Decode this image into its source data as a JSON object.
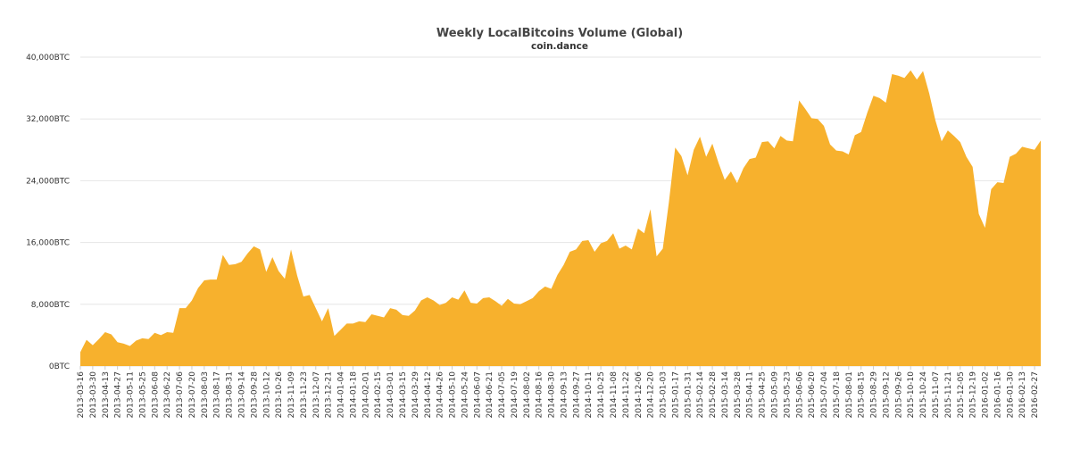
{
  "chart_data": {
    "type": "area",
    "title": "Weekly LocalBitcoins Volume (Global)",
    "subtitle": "coin.dance",
    "xlabel": "",
    "ylabel": "",
    "y_unit": "BTC",
    "ylim": [
      0,
      40000
    ],
    "y_ticks": [
      "0BTC",
      "8,000BTC",
      "16,000BTC",
      "24,000BTC",
      "32,000BTC",
      "40,000BTC"
    ],
    "y_tick_values": [
      0,
      8000,
      16000,
      24000,
      32000,
      40000
    ],
    "grid": true,
    "legend": "none",
    "color": "#F7B12D",
    "x_tick_labels": [
      "2013-03-16",
      "2013-03-30",
      "2013-04-13",
      "2013-04-27",
      "2013-05-11",
      "2013-05-25",
      "2013-06-08",
      "2013-06-22",
      "2013-07-06",
      "2013-07-20",
      "2013-08-03",
      "2013-08-17",
      "2013-08-31",
      "2013-09-14",
      "2013-09-28",
      "2013-10-12",
      "2013-10-26",
      "2013-11-09",
      "2013-11-23",
      "2013-12-07",
      "2013-12-21",
      "2014-01-04",
      "2014-01-18",
      "2014-02-01",
      "2014-02-15",
      "2014-03-01",
      "2014-03-15",
      "2014-03-29",
      "2014-04-12",
      "2014-04-26",
      "2014-05-10",
      "2014-05-24",
      "2014-06-07",
      "2014-06-21",
      "2014-07-05",
      "2014-07-19",
      "2014-08-02",
      "2014-08-16",
      "2014-08-30",
      "2014-09-13",
      "2014-09-27",
      "2014-10-11",
      "2014-10-25",
      "2014-11-08",
      "2014-11-22",
      "2014-12-06",
      "2014-12-20",
      "2015-01-03",
      "2015-01-17",
      "2015-01-31",
      "2015-02-14",
      "2015-02-28",
      "2015-03-14",
      "2015-03-28",
      "2015-04-11",
      "2015-04-25",
      "2015-05-09",
      "2015-05-23",
      "2015-06-06",
      "2015-06-20",
      "2015-07-04",
      "2015-07-18",
      "2015-08-01",
      "2015-08-15",
      "2015-08-29",
      "2015-09-12",
      "2015-09-26",
      "2015-10-10",
      "2015-10-24",
      "2015-11-07",
      "2015-11-21",
      "2015-12-05",
      "2015-12-19",
      "2016-01-02",
      "2016-01-16",
      "2016-01-30",
      "2016-02-13",
      "2016-02-27"
    ],
    "values": [
      1800,
      3400,
      2700,
      3500,
      4400,
      4100,
      3100,
      2900,
      2600,
      3300,
      3600,
      3500,
      4300,
      4000,
      4400,
      4300,
      7500,
      7500,
      8500,
      10100,
      11100,
      11200,
      11200,
      14400,
      13100,
      13200,
      13500,
      14600,
      15500,
      15100,
      12200,
      14100,
      12300,
      11300,
      15100,
      11700,
      9000,
      9200,
      7500,
      5800,
      7500,
      3900,
      4700,
      5500,
      5500,
      5800,
      5700,
      6700,
      6500,
      6300,
      7500,
      7300,
      6600,
      6500,
      7200,
      8500,
      8900,
      8500,
      7900,
      8200,
      8900,
      8600,
      9800,
      8200,
      8100,
      8800,
      8900,
      8400,
      7800,
      8700,
      8100,
      8000,
      8400,
      8800,
      9700,
      10300,
      10000,
      11800,
      13100,
      14800,
      15100,
      16200,
      16300,
      14800,
      15900,
      16200,
      17200,
      15200,
      15600,
      15100,
      17800,
      17200,
      20300,
      14200,
      15200,
      21300,
      28300,
      27200,
      24700,
      28000,
      29700,
      27100,
      28800,
      26300,
      24100,
      25200,
      23700,
      25600,
      26800,
      27000,
      29000,
      29100,
      28200,
      29800,
      29200,
      29100,
      34400,
      33300,
      32100,
      32000,
      31100,
      28700,
      27900,
      27800,
      27400,
      29900,
      30300,
      32800,
      35000,
      34700,
      34100,
      37800,
      37600,
      37300,
      38300,
      37100,
      38200,
      35300,
      31800,
      29100,
      30500,
      29800,
      29000,
      27100,
      25800,
      19700,
      17900,
      22900,
      23800,
      23700,
      27100,
      27500,
      28400,
      28200,
      28000,
      29200
    ]
  }
}
